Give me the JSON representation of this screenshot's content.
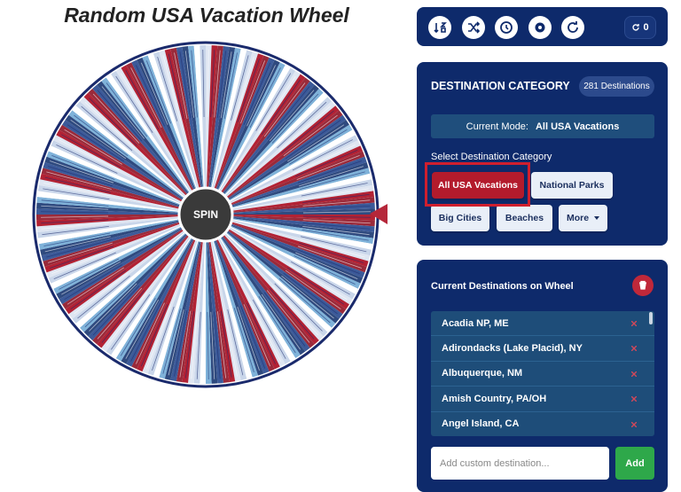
{
  "title": "Random USA Vacation Wheel",
  "wheel": {
    "spin_button": "SPIN"
  },
  "toolbar": {
    "counter": "0"
  },
  "category_panel": {
    "title": "DESTINATION CATEGORY",
    "count_badge": "281 Destinations",
    "current_mode_label": "Current Mode:",
    "current_mode": "All USA Vacations",
    "select_label": "Select Destination Category",
    "categories": [
      "All USA Vacations",
      "National Parks",
      "Big Cities",
      "Beaches",
      "More"
    ]
  },
  "destinations_panel": {
    "title": "Current Destinations on Wheel",
    "items": [
      "Acadia NP, ME",
      "Adirondacks (Lake Placid), NY",
      "Albuquerque, NM",
      "Amish Country, PA/OH",
      "Angel Island, CA"
    ],
    "input_placeholder": "Add custom destination...",
    "add_button": "Add"
  }
}
